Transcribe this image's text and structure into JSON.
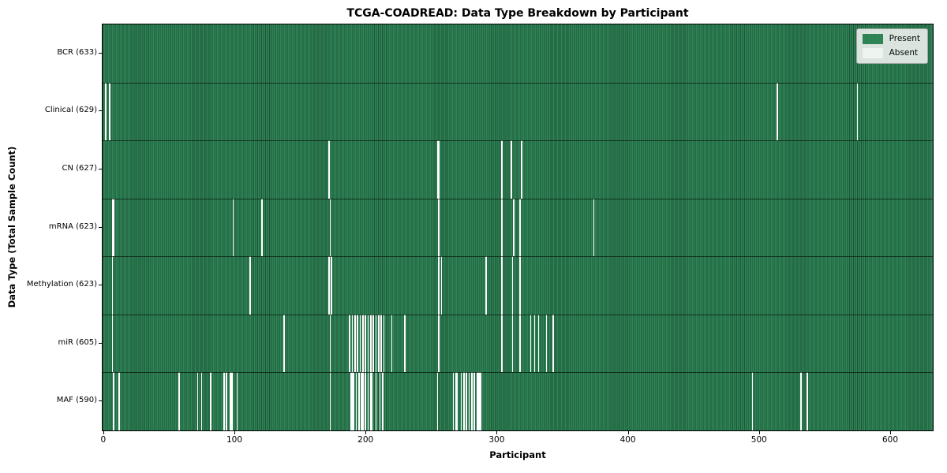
{
  "title": "TCGA-COADREAD: Data Type Breakdown by Participant",
  "chart_data": {
    "type": "heatmap",
    "title": "TCGA-COADREAD: Data Type Breakdown by Participant",
    "xlabel": "Participant",
    "ylabel": "Data Type (Total Sample Count)",
    "x_ticks": [
      0,
      100,
      200,
      300,
      400,
      500,
      600
    ],
    "x_range": [
      0,
      632
    ],
    "n_participants": 633,
    "grid": false,
    "cell_states": {
      "present_value": 1,
      "absent_value": 0
    },
    "legend": {
      "position": "upper right",
      "entries": [
        {
          "label": "Present",
          "color": "#2f8556"
        },
        {
          "label": "Absent",
          "color": "#ffffff"
        }
      ]
    },
    "rows": [
      {
        "name": "BCR",
        "label": "BCR (633)",
        "total_samples": 633,
        "absent_participants": []
      },
      {
        "name": "Clinical",
        "label": "Clinical (629)",
        "total_samples": 629,
        "absent_participants": [
          2,
          5,
          514,
          575
        ]
      },
      {
        "name": "CN",
        "label": "CN (627)",
        "total_samples": 627,
        "absent_participants": [
          172,
          255,
          256,
          304,
          311,
          319
        ]
      },
      {
        "name": "mRNA",
        "label": "mRNA (623)",
        "total_samples": 623,
        "absent_participants": [
          7,
          8,
          99,
          121,
          173,
          256,
          304,
          313,
          318,
          374
        ]
      },
      {
        "name": "Methylation",
        "label": "Methylation (623)",
        "total_samples": 623,
        "absent_participants": [
          7,
          112,
          172,
          174,
          256,
          258,
          292,
          304,
          312,
          318
        ]
      },
      {
        "name": "miR",
        "label": "miR (605)",
        "total_samples": 605,
        "absent_participants": [
          7,
          138,
          173,
          188,
          190,
          192,
          194,
          196,
          198,
          200,
          202,
          204,
          206,
          208,
          210,
          212,
          214,
          220,
          230,
          256,
          304,
          312,
          318,
          326,
          329,
          332,
          338,
          343
        ]
      },
      {
        "name": "MAF",
        "label": "MAF (590)",
        "total_samples": 590,
        "absent_participants": [
          8,
          12,
          58,
          72,
          75,
          82,
          92,
          94,
          97,
          98,
          102,
          173,
          189,
          190,
          191,
          193,
          195,
          197,
          198,
          200,
          202,
          204,
          205,
          208,
          211,
          213,
          255,
          267,
          269,
          270,
          273,
          275,
          277,
          279,
          281,
          283,
          285,
          286,
          287,
          288,
          495,
          532,
          537
        ]
      }
    ]
  },
  "colors": {
    "present": "#2f8556",
    "present_edge": "#1e5338",
    "absent": "#ffffff",
    "axis": "#000000",
    "legend_bg": "#ebeeeb",
    "legend_border": "#a9aea9",
    "background": "#ffffff"
  }
}
